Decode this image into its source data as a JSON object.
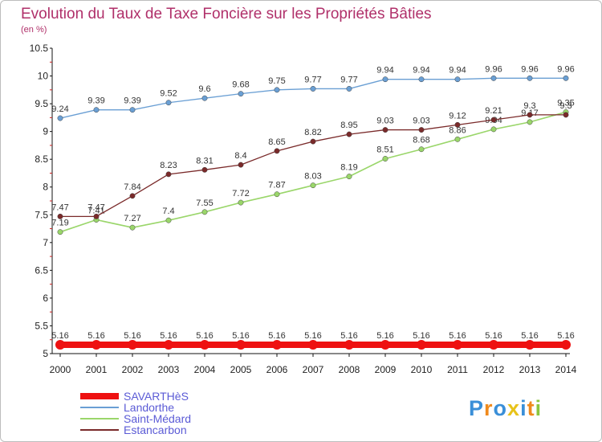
{
  "chart_data": {
    "type": "line",
    "title": "Evolution du Taux de Taxe Foncière sur les Propriétés Bâties",
    "subtitle": "(en %)",
    "xlabel": "",
    "ylabel": "",
    "x": [
      "2000",
      "2001",
      "2002",
      "2003",
      "2004",
      "2005",
      "2006",
      "2007",
      "2008",
      "2009",
      "2010",
      "2011",
      "2012",
      "2013",
      "2014"
    ],
    "ylim": [
      5,
      10.5
    ],
    "yticks": [
      "5",
      "5.5",
      "6",
      "6.5",
      "7",
      "7.5",
      "8",
      "8.5",
      "9",
      "9.5",
      "10",
      "10.5"
    ],
    "grid": false,
    "legend_position": "bottom-left",
    "series": [
      {
        "name": "SAVARTHèS",
        "color": "#ee1111",
        "values": [
          5.16,
          5.16,
          5.16,
          5.16,
          5.16,
          5.16,
          5.16,
          5.16,
          5.16,
          5.16,
          5.16,
          5.16,
          5.16,
          5.16,
          5.16
        ],
        "labels": [
          "5.16",
          "5.16",
          "5.16",
          "5.16",
          "5.16",
          "5.16",
          "5.16",
          "5.16",
          "5.16",
          "5.16",
          "5.16",
          "5.16",
          "5.16",
          "5.16",
          "5.16"
        ]
      },
      {
        "name": "Landorthe",
        "color": "#6a9fd4",
        "values": [
          9.24,
          9.39,
          9.39,
          9.52,
          9.6,
          9.68,
          9.75,
          9.77,
          9.77,
          9.94,
          9.94,
          9.94,
          9.96,
          9.96,
          9.96
        ],
        "labels": [
          "9.24",
          "9.39",
          "9.39",
          "9.52",
          "9.6",
          "9.68",
          "9.75",
          "9.77",
          "9.77",
          "9.94",
          "9.94",
          "9.94",
          "9.96",
          "9.96",
          "9.96"
        ]
      },
      {
        "name": "Saint-Médard",
        "color": "#9ad66a",
        "values": [
          7.19,
          7.41,
          7.27,
          7.4,
          7.55,
          7.72,
          7.87,
          8.03,
          8.19,
          8.51,
          8.68,
          8.86,
          9.04,
          9.17,
          9.35
        ],
        "labels": [
          "7.19",
          "7.41",
          "7.27",
          "7.4",
          "7.55",
          "7.72",
          "7.87",
          "8.03",
          "8.19",
          "8.51",
          "8.68",
          "8.86",
          "9.04",
          "9.17",
          "9.35"
        ]
      },
      {
        "name": "Estancarbon",
        "color": "#7a2a2a",
        "values": [
          7.47,
          7.47,
          7.84,
          8.23,
          8.31,
          8.4,
          8.65,
          8.82,
          8.95,
          9.03,
          9.03,
          9.12,
          9.21,
          9.3,
          9.3
        ],
        "labels": [
          "7.47",
          "7.47",
          "7.84",
          "8.23",
          "8.31",
          "8.4",
          "8.65",
          "8.82",
          "8.95",
          "9.03",
          "9.03",
          "9.12",
          "9.21",
          "9.3",
          "9.3"
        ]
      }
    ]
  },
  "logo": {
    "text": "Proxiti",
    "letters": [
      {
        "ch": "P",
        "color": "#3a8fd8"
      },
      {
        "ch": "r",
        "color": "#f08a1c"
      },
      {
        "ch": "o",
        "color": "#3a8fd8"
      },
      {
        "ch": "x",
        "color": "#e8c31a"
      },
      {
        "ch": "i",
        "color": "#3a8fd8"
      },
      {
        "ch": "t",
        "color": "#f08a1c"
      },
      {
        "ch": "i",
        "color": "#8cc63f"
      }
    ]
  }
}
